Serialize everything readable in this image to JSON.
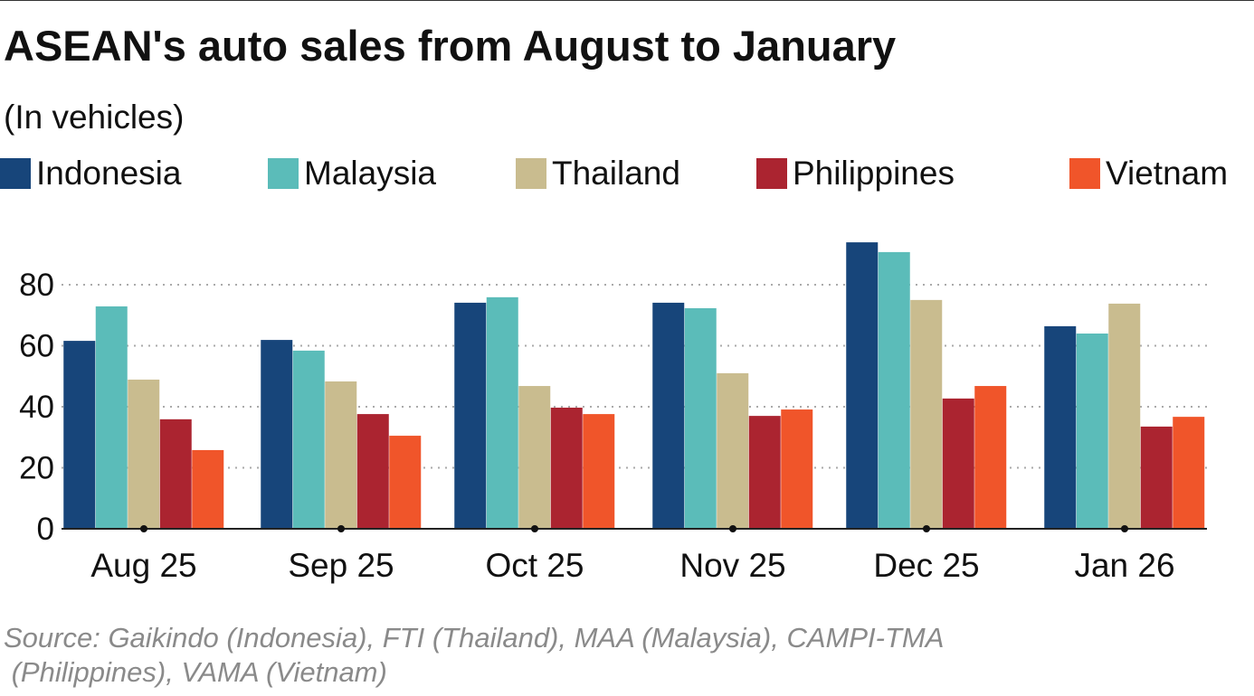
{
  "chart_data": {
    "type": "bar",
    "title": "ASEAN's auto sales from August to January",
    "subtitle": "(In vehicles)",
    "categories": [
      "Aug 25",
      "Sep 25",
      "Oct 25",
      "Nov 25",
      "Dec 25",
      "Jan 26"
    ],
    "series": [
      {
        "name": "Indonesia",
        "color": "#17457a",
        "values": [
          61.6,
          61.9,
          74.1,
          74.1,
          93.9,
          66.4
        ]
      },
      {
        "name": "Malaysia",
        "color": "#5bbcb9",
        "values": [
          72.9,
          58.4,
          75.9,
          72.3,
          90.7,
          64.0
        ]
      },
      {
        "name": "Thailand",
        "color": "#c9bc8f",
        "values": [
          48.9,
          48.3,
          46.8,
          51.0,
          75.0,
          73.8
        ]
      },
      {
        "name": "Philippines",
        "color": "#ab2430",
        "values": [
          35.9,
          37.6,
          39.7,
          37.0,
          42.7,
          33.5
        ]
      },
      {
        "name": "Vietnam",
        "color": "#f0552a",
        "values": [
          25.8,
          30.5,
          37.6,
          39.1,
          46.8,
          36.7
        ]
      }
    ],
    "yticks": [
      0,
      20,
      40,
      60,
      80
    ],
    "ylim": [
      0,
      96
    ],
    "grid": true,
    "legend": "top",
    "source": [
      "Source: Gaikindo (Indonesia), FTI (Thailand), MAA (Malaysia), CAMPI-TMA",
      " (Philippines), VAMA (Vietnam)"
    ]
  }
}
